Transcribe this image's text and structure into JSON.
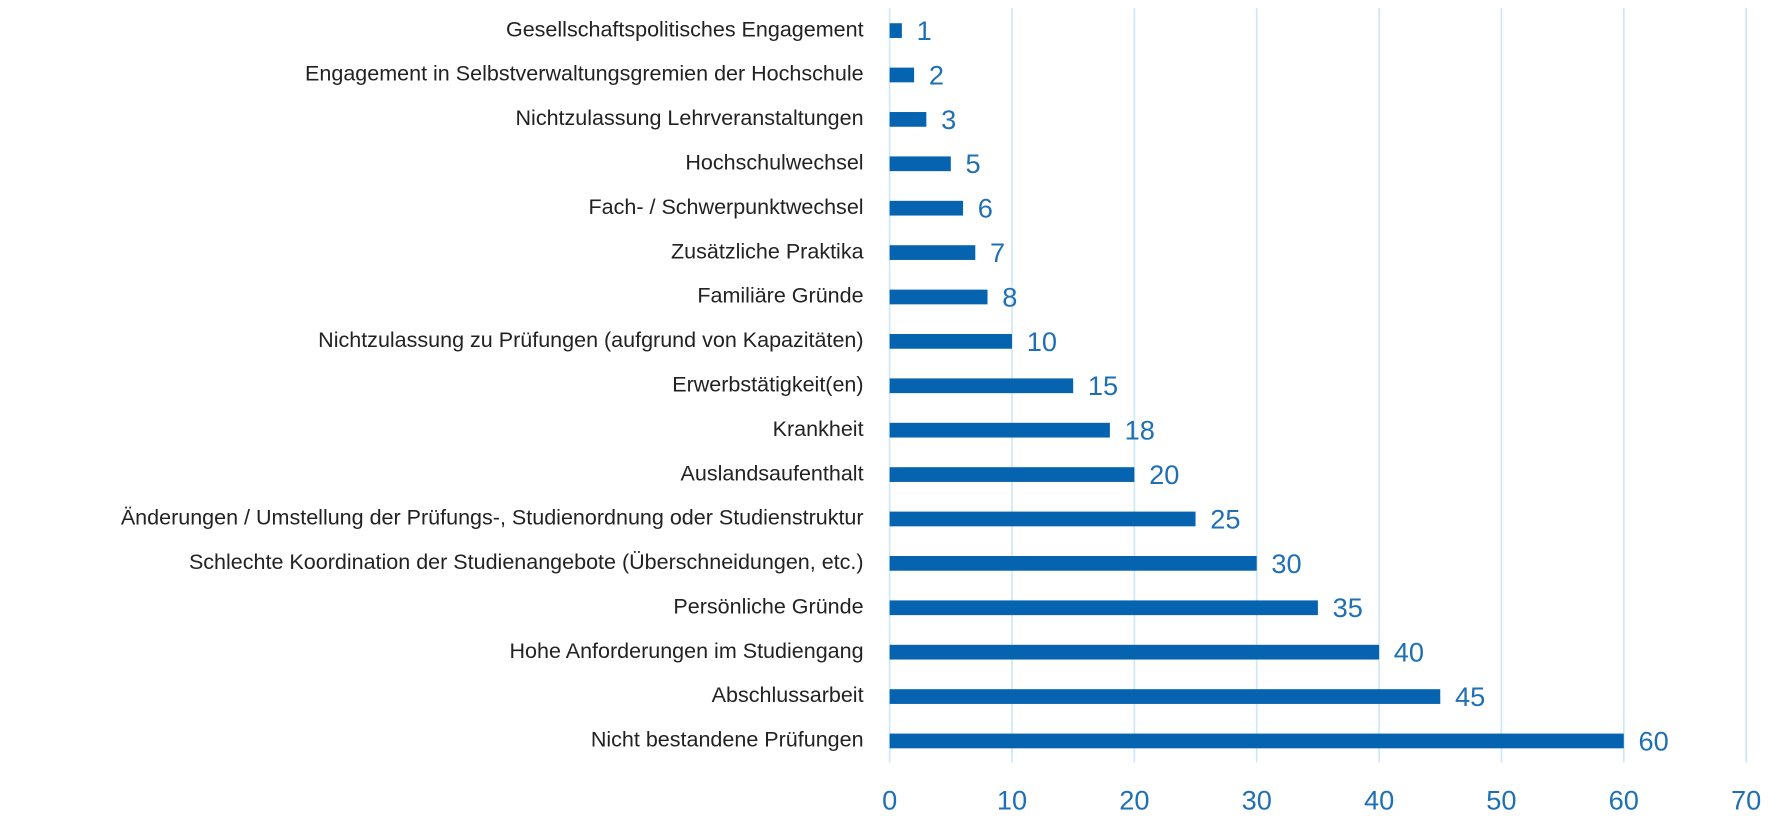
{
  "chart_data": {
    "type": "bar",
    "orientation": "horizontal",
    "categories": [
      "Gesellschaftspolitisches Engagement",
      "Engagement in Selbstverwaltungsgremien der Hochschule",
      "Nichtzulassung Lehrveranstaltungen",
      "Hochschulwechsel",
      "Fach- / Schwerpunktwechsel",
      "Zusätzliche Praktika",
      "Familiäre Gründe",
      "Nichtzulassung zu Prüfungen (aufgrund von Kapazitäten)",
      "Erwerbstätigkeit(en)",
      "Krankheit",
      "Auslandsaufenthalt",
      "Änderungen / Umstellung der Prüfungs-, Studienordnung oder Studienstruktur",
      "Schlechte Koordination der Studienangebote (Überschneidungen, etc.)",
      "Persönliche Gründe",
      "Hohe Anforderungen im Studiengang",
      "Abschlussarbeit",
      "Nicht bestandene Prüfungen"
    ],
    "values": [
      1,
      2,
      3,
      5,
      6,
      7,
      8,
      10,
      15,
      18,
      20,
      25,
      30,
      35,
      40,
      45,
      60
    ],
    "color": "#0563b0",
    "xlim": [
      0,
      70
    ],
    "xticks": [
      0,
      10,
      20,
      30,
      40,
      50,
      60,
      70
    ],
    "grid": true
  }
}
